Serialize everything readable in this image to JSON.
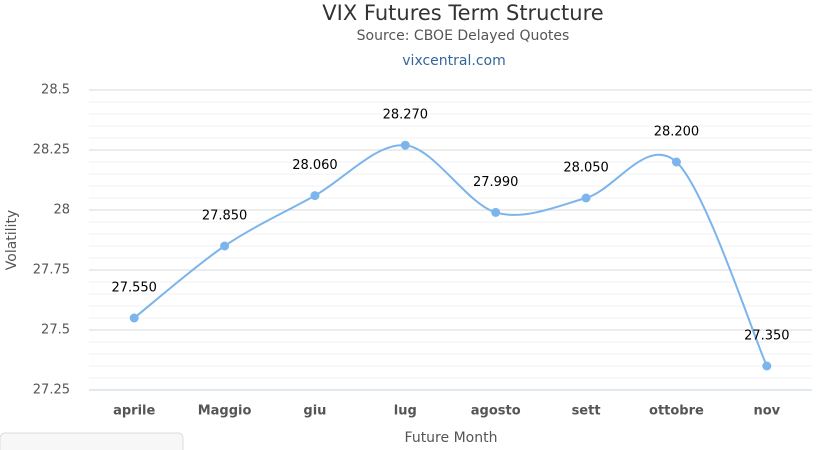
{
  "chart_data": {
    "type": "line",
    "title": "VIX Futures Term Structure",
    "subtitle": "Source: CBOE Delayed Quotes",
    "credit": "vixcentral.com",
    "x_label": "Future Month",
    "y_label": "Volatility",
    "categories": [
      "aprile",
      "Maggio",
      "giu",
      "lug",
      "agosto",
      "sett",
      "ottobre",
      "nov"
    ],
    "series": [
      {
        "name": "Volatility",
        "color": "#7cb5ec",
        "values": [
          27.55,
          27.85,
          28.06,
          28.27,
          27.99,
          28.05,
          28.2,
          27.35
        ],
        "value_labels": [
          "27.550",
          "27.850",
          "28.060",
          "28.270",
          "27.990",
          "28.050",
          "28.200",
          "27.350"
        ]
      }
    ],
    "ylim": [
      27.25,
      28.5
    ],
    "yticks": [
      27.25,
      27.5,
      27.75,
      28,
      28.25,
      28.5
    ],
    "grid": true
  }
}
